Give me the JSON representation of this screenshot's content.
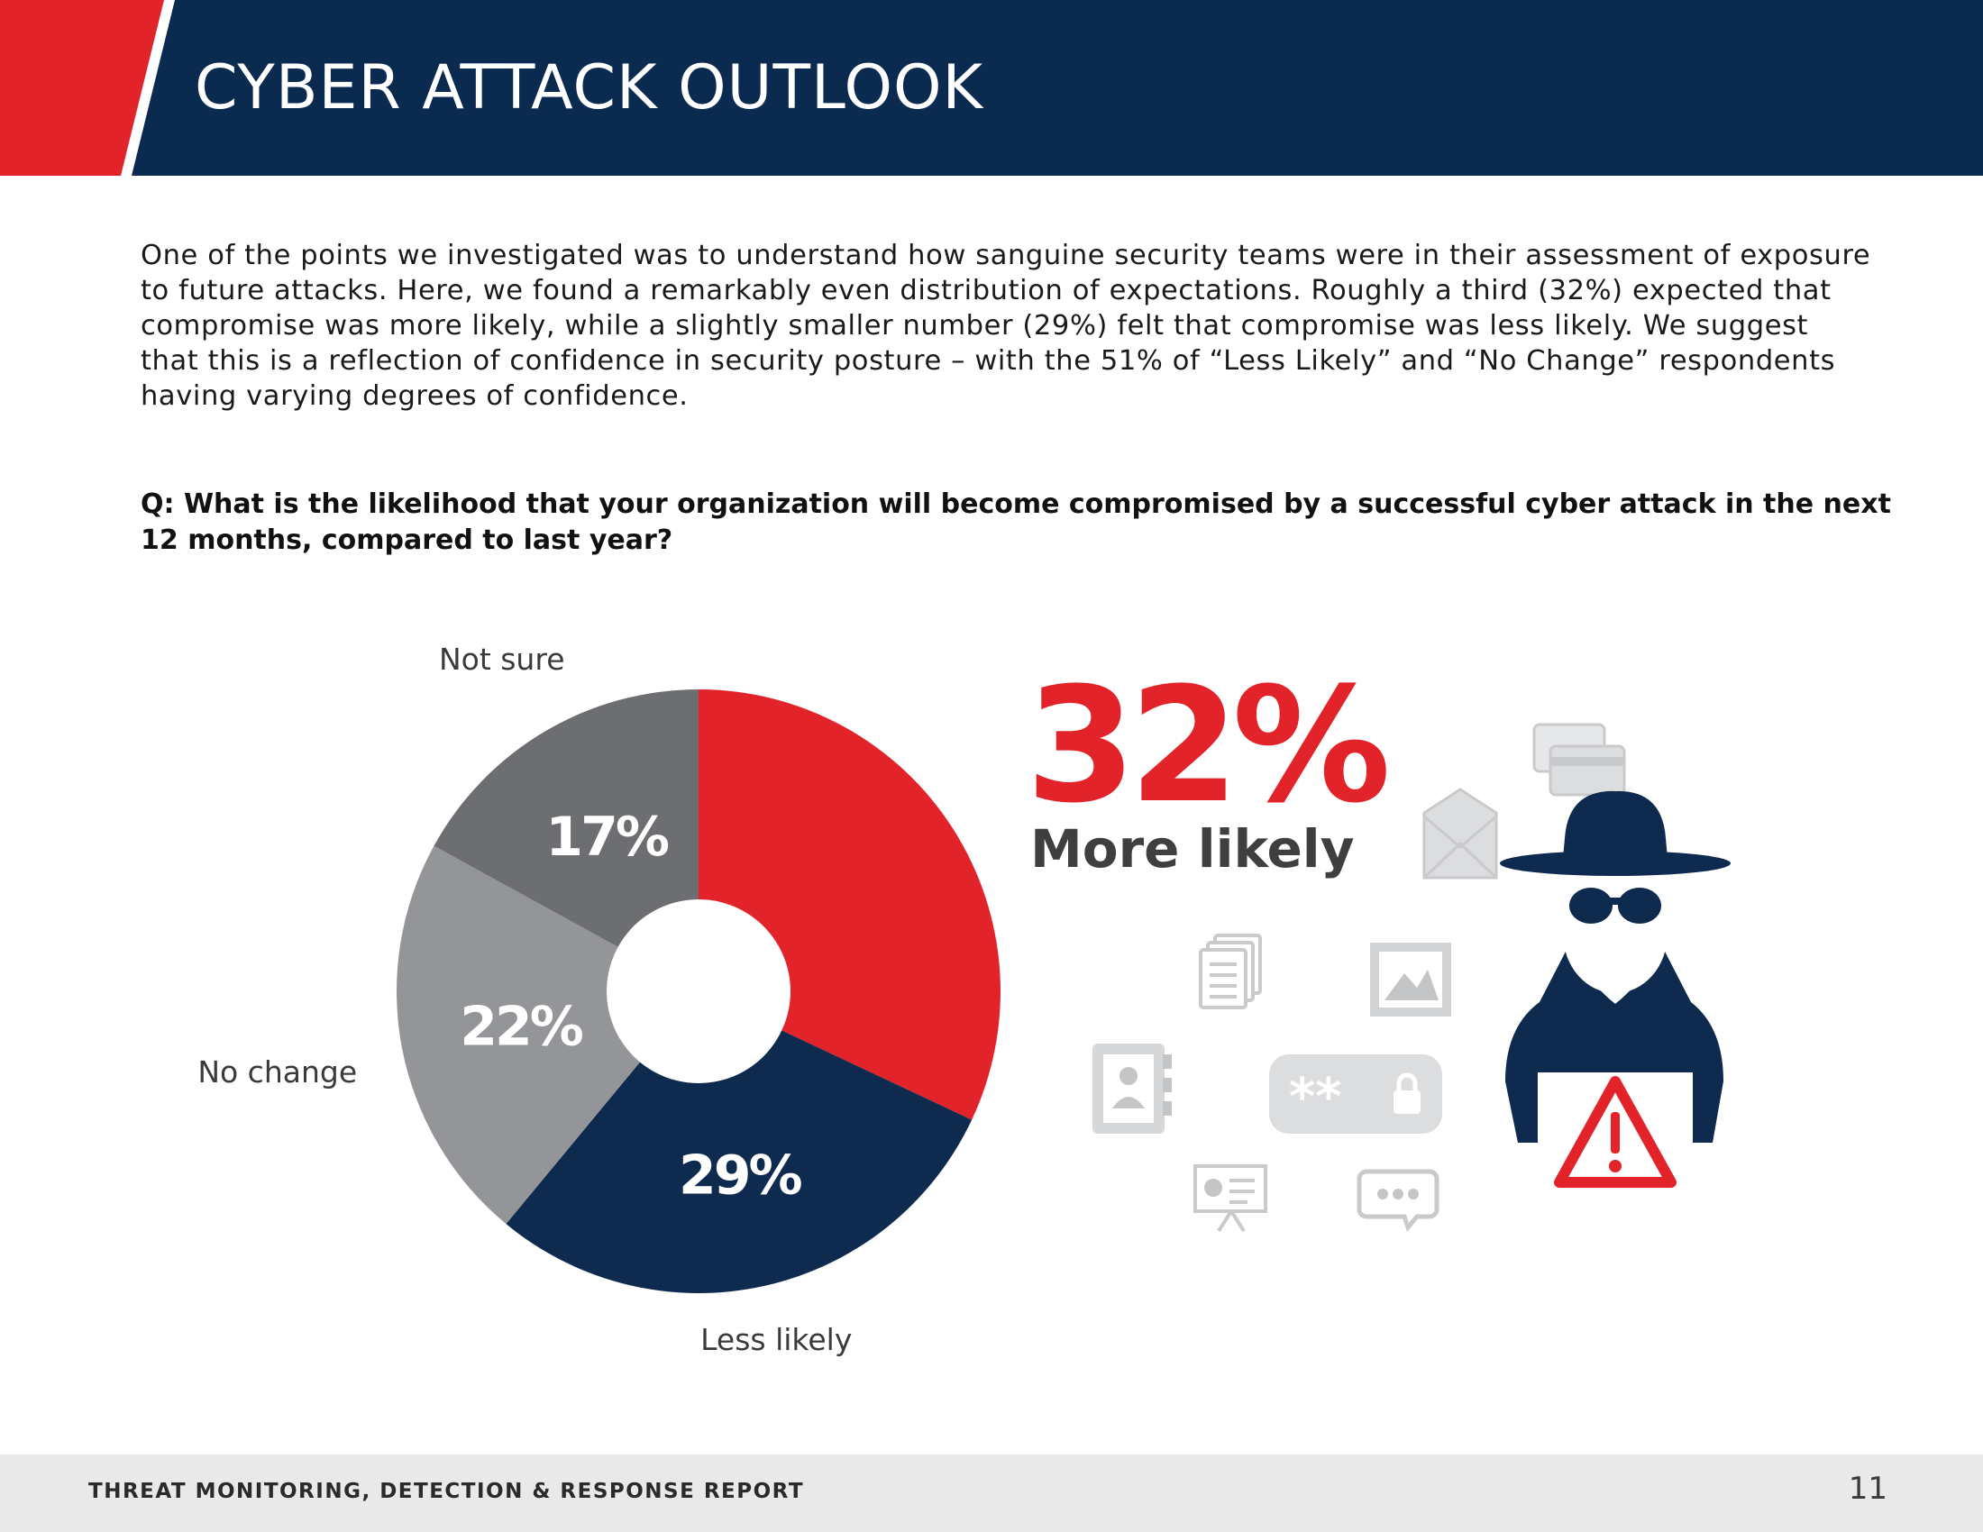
{
  "header": {
    "title": "CYBER ATTACK OUTLOOK"
  },
  "intro_text": "One of the points we investigated was to understand how sanguine security teams were in their assessment of exposure to future attacks. Here, we found a remarkably even distribution of expectations. Roughly a third (32%) expected that compromise was more likely, while a slightly smaller number (29%) felt that compromise was less likely. We suggest that this is a reflection of confidence in security posture – with the 51% of “Less Likely” and “No Change” respondents having varying degrees of confidence.",
  "question": "Q: What is the likelihood that your organization will become compromised by a successful cyber attack in the next 12 months, compared to last year?",
  "chart_data": {
    "type": "pie",
    "donut": true,
    "slices": [
      {
        "label": "More likely",
        "value": 32,
        "value_label": "",
        "color": "#e3232a"
      },
      {
        "label": "Less likely",
        "value": 29,
        "value_label": "29%",
        "color": "#0e2a4e"
      },
      {
        "label": "No change",
        "value": 22,
        "value_label": "22%",
        "color": "#939598"
      },
      {
        "label": "Not sure",
        "value": 17,
        "value_label": "17%",
        "color": "#6d6e71"
      }
    ],
    "outer_labels": [
      "",
      "Less likely",
      "No change",
      "Not sure"
    ]
  },
  "callout": {
    "value": "32%",
    "label": "More likely"
  },
  "illustration_icons": [
    "credit-card-icon",
    "envelope-icon",
    "documents-icon",
    "image-icon",
    "contact-book-icon",
    "password-icon",
    "presentation-icon",
    "chat-icon",
    "hacker-icon",
    "warning-icon"
  ],
  "footer": {
    "title": "THREAT MONITORING, DETECTION & RESPONSE REPORT",
    "page_number": "11"
  }
}
